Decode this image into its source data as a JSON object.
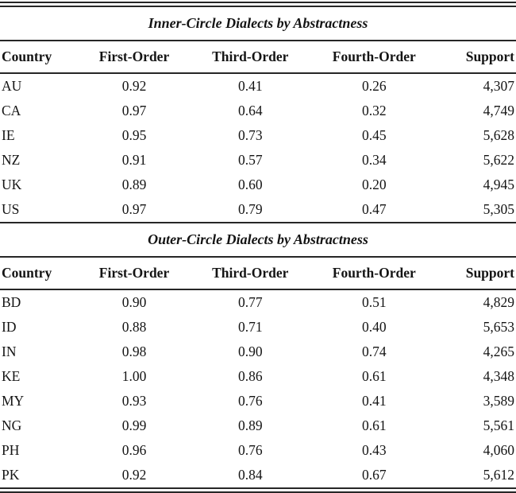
{
  "tables": [
    {
      "title": "Inner-Circle Dialects by Abstractness",
      "columns": [
        "Country",
        "First-Order",
        "Third-Order",
        "Fourth-Order",
        "Support"
      ],
      "rows": [
        [
          "AU",
          "0.92",
          "0.41",
          "0.26",
          "4,307"
        ],
        [
          "CA",
          "0.97",
          "0.64",
          "0.32",
          "4,749"
        ],
        [
          "IE",
          "0.95",
          "0.73",
          "0.45",
          "5,628"
        ],
        [
          "NZ",
          "0.91",
          "0.57",
          "0.34",
          "5,622"
        ],
        [
          "UK",
          "0.89",
          "0.60",
          "0.20",
          "4,945"
        ],
        [
          "US",
          "0.97",
          "0.79",
          "0.47",
          "5,305"
        ]
      ]
    },
    {
      "title": "Outer-Circle Dialects by Abstractness",
      "columns": [
        "Country",
        "First-Order",
        "Third-Order",
        "Fourth-Order",
        "Support"
      ],
      "rows": [
        [
          "BD",
          "0.90",
          "0.77",
          "0.51",
          "4,829"
        ],
        [
          "ID",
          "0.88",
          "0.71",
          "0.40",
          "5,653"
        ],
        [
          "IN",
          "0.98",
          "0.90",
          "0.74",
          "4,265"
        ],
        [
          "KE",
          "1.00",
          "0.86",
          "0.61",
          "4,348"
        ],
        [
          "MY",
          "0.93",
          "0.76",
          "0.41",
          "3,589"
        ],
        [
          "NG",
          "0.99",
          "0.89",
          "0.61",
          "5,561"
        ],
        [
          "PH",
          "0.96",
          "0.76",
          "0.43",
          "4,060"
        ],
        [
          "PK",
          "0.92",
          "0.84",
          "0.67",
          "5,612"
        ]
      ]
    }
  ],
  "colors": {
    "text": "#141414",
    "rule": "#262626",
    "background": "#ffffff"
  }
}
